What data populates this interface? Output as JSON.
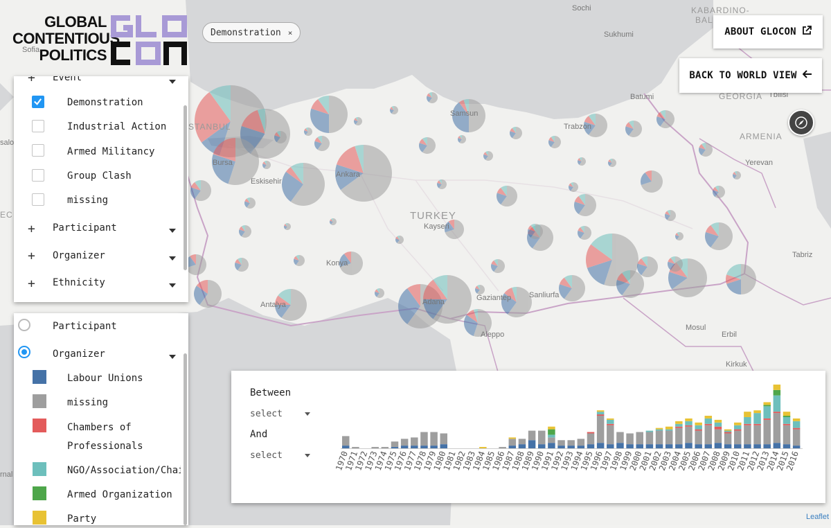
{
  "app": {
    "logo_text": [
      "GLOBAL",
      "CONTENTIOUS",
      "POLITICS"
    ],
    "logo_mark_color": "#a89ad6",
    "about_label": "ABOUT GLOCON",
    "about_icon": "external-link-icon",
    "back_label": "BACK TO WORLD VIEW",
    "back_icon": "arrow-left-icon",
    "compass_icon": "compass-icon",
    "active_filter_chip": "Demonstration",
    "chip_close": "×",
    "attribution": "Leaflet"
  },
  "filters": {
    "event_label": "Event",
    "event_options": [
      {
        "label": "Demonstration",
        "checked": true
      },
      {
        "label": "Industrial Action",
        "checked": false
      },
      {
        "label": "Armed Militancy",
        "checked": false
      },
      {
        "label": "Group Clash",
        "checked": false
      },
      {
        "label": "missing",
        "checked": false
      }
    ],
    "groups": [
      "Participant",
      "Organizer",
      "Ethnicity"
    ]
  },
  "legend": {
    "color_by": [
      {
        "label": "Participant",
        "selected": false
      },
      {
        "label": "Organizer",
        "selected": true
      }
    ],
    "items": [
      {
        "label": "Labour Unions",
        "color": "#4572a7"
      },
      {
        "label": "missing",
        "color": "#9e9e9e"
      },
      {
        "label": "Chambers of Professionals",
        "line1": "Chambers of",
        "line2": "Professionals",
        "color": "#e35b5b"
      },
      {
        "label": "NGO/Association/Chai",
        "color": "#6dbfbc"
      },
      {
        "label": "Armed Organization",
        "color": "#4ea64a"
      },
      {
        "label": "Party",
        "color": "#e8c234"
      }
    ]
  },
  "timeline": {
    "between_label": "Between",
    "and_label": "And",
    "from_select": "select",
    "to_select": "select"
  },
  "map_labels": {
    "sochi": "Sochi",
    "sukhumi": "Sukhumi",
    "kabardino": "KABARDINO-",
    "balkaria": "BAL",
    "batumi": "Batumi",
    "georgia": "GEORGIA",
    "tbilisi": "Tbilisi",
    "armenia": "ARMENIA",
    "yerevan": "Yerevan",
    "istanbul": "STANBUL",
    "bursa": "Bursa",
    "eskisehir": "Eskisehir",
    "ankara": "Ankara",
    "samsun": "Samsun",
    "trabzon": "Trabzon",
    "turkey": "TURKEY",
    "kayseri": "Kayseri",
    "konya": "Konya",
    "antalya": "Antalya",
    "adana": "Adana",
    "gaziantep": "Gaziantep",
    "sanliurfa": "Sanliurfa",
    "aleppo": "Aleppo",
    "mosul": "Mosul",
    "erbil": "Erbil",
    "kirkuk": "Kirkuk",
    "tabriz": "Tabriz",
    "sofia": "Sofia",
    "salo": "salo",
    "ec": "EC",
    "rnal": "rnal"
  },
  "colors": {
    "labour": "#4572a7",
    "missing": "#9e9e9e",
    "chambers": "#e35b5b",
    "ngo": "#6dbfbc",
    "armed": "#4ea64a",
    "party": "#e8c234",
    "accent": "#2196f3"
  },
  "chart_data": {
    "type": "bar",
    "stacked": true,
    "categories": [
      "1970",
      "1971",
      "1972",
      "1973",
      "1974",
      "1975",
      "1976",
      "1977",
      "1978",
      "1979",
      "1980",
      "1981",
      "1982",
      "1983",
      "1984",
      "1985",
      "1986",
      "1987",
      "1988",
      "1989",
      "1990",
      "1991",
      "1992",
      "1993",
      "1994",
      "1995",
      "1996",
      "1997",
      "1998",
      "1999",
      "2000",
      "2001",
      "2002",
      "2003",
      "2004",
      "2005",
      "2006",
      "2007",
      "2008",
      "2009",
      "2010",
      "2011",
      "2012",
      "2013",
      "2014",
      "2015",
      "2016"
    ],
    "series": [
      {
        "name": "Labour Unions",
        "color": "#4572a7",
        "values": [
          2,
          0,
          0,
          0,
          0,
          1,
          2,
          2,
          2,
          2,
          3,
          0,
          0,
          0,
          0,
          0,
          0,
          2,
          3,
          6,
          3,
          4,
          2,
          2,
          2,
          3,
          4,
          3,
          4,
          3,
          3,
          3,
          3,
          3,
          3,
          4,
          3,
          3,
          4,
          3,
          3,
          3,
          3,
          3,
          4,
          3,
          2
        ]
      },
      {
        "name": "missing",
        "color": "#9e9e9e",
        "values": [
          7,
          1,
          0,
          1,
          1,
          4,
          5,
          6,
          10,
          10,
          8,
          0,
          0,
          0,
          0,
          0,
          1,
          5,
          4,
          7,
          10,
          4,
          4,
          4,
          5,
          8,
          20,
          14,
          8,
          8,
          9,
          9,
          10,
          10,
          12,
          12,
          10,
          14,
          10,
          8,
          10,
          14,
          14,
          18,
          22,
          14,
          12
        ]
      },
      {
        "name": "Chambers of Professionals",
        "color": "#e35b5b",
        "values": [
          0,
          0,
          0,
          0,
          0,
          0,
          0,
          0,
          0,
          0,
          0,
          0,
          0,
          0,
          0,
          0,
          0,
          0,
          0,
          0,
          0,
          0,
          0,
          0,
          0,
          1,
          1,
          1,
          0,
          0,
          0,
          0,
          0,
          0,
          1,
          1,
          1,
          1,
          2,
          1,
          1,
          1,
          1,
          1,
          1,
          1,
          1
        ]
      },
      {
        "name": "NGO/Association/Chai",
        "color": "#6dbfbc",
        "values": [
          0,
          0,
          0,
          0,
          0,
          0,
          0,
          0,
          0,
          0,
          0,
          0,
          0,
          0,
          0,
          0,
          0,
          0,
          0,
          0,
          0,
          2,
          0,
          0,
          0,
          0,
          2,
          3,
          0,
          0,
          0,
          1,
          1,
          1,
          2,
          3,
          3,
          4,
          3,
          1,
          3,
          5,
          8,
          9,
          12,
          5,
          5
        ]
      },
      {
        "name": "Armed Organization",
        "color": "#4ea64a",
        "values": [
          0,
          0,
          0,
          0,
          0,
          0,
          0,
          0,
          0,
          0,
          0,
          0,
          0,
          0,
          0,
          0,
          0,
          0,
          0,
          0,
          0,
          4,
          0,
          0,
          0,
          0,
          0,
          0,
          0,
          0,
          0,
          0,
          0,
          0,
          0,
          0,
          0,
          0,
          0,
          0,
          0,
          0,
          0,
          1,
          4,
          1,
          0
        ]
      },
      {
        "name": "Party",
        "color": "#e8c234",
        "values": [
          0,
          0,
          0,
          0,
          0,
          0,
          0,
          0,
          0,
          0,
          0,
          0,
          0,
          0,
          1,
          0,
          0,
          1,
          0,
          0,
          0,
          2,
          0,
          0,
          0,
          0,
          1,
          1,
          0,
          0,
          0,
          0,
          1,
          2,
          2,
          2,
          2,
          2,
          2,
          1,
          2,
          4,
          2,
          2,
          4,
          3,
          2
        ]
      }
    ],
    "xlabel": "",
    "ylabel": "",
    "legend": "none"
  }
}
